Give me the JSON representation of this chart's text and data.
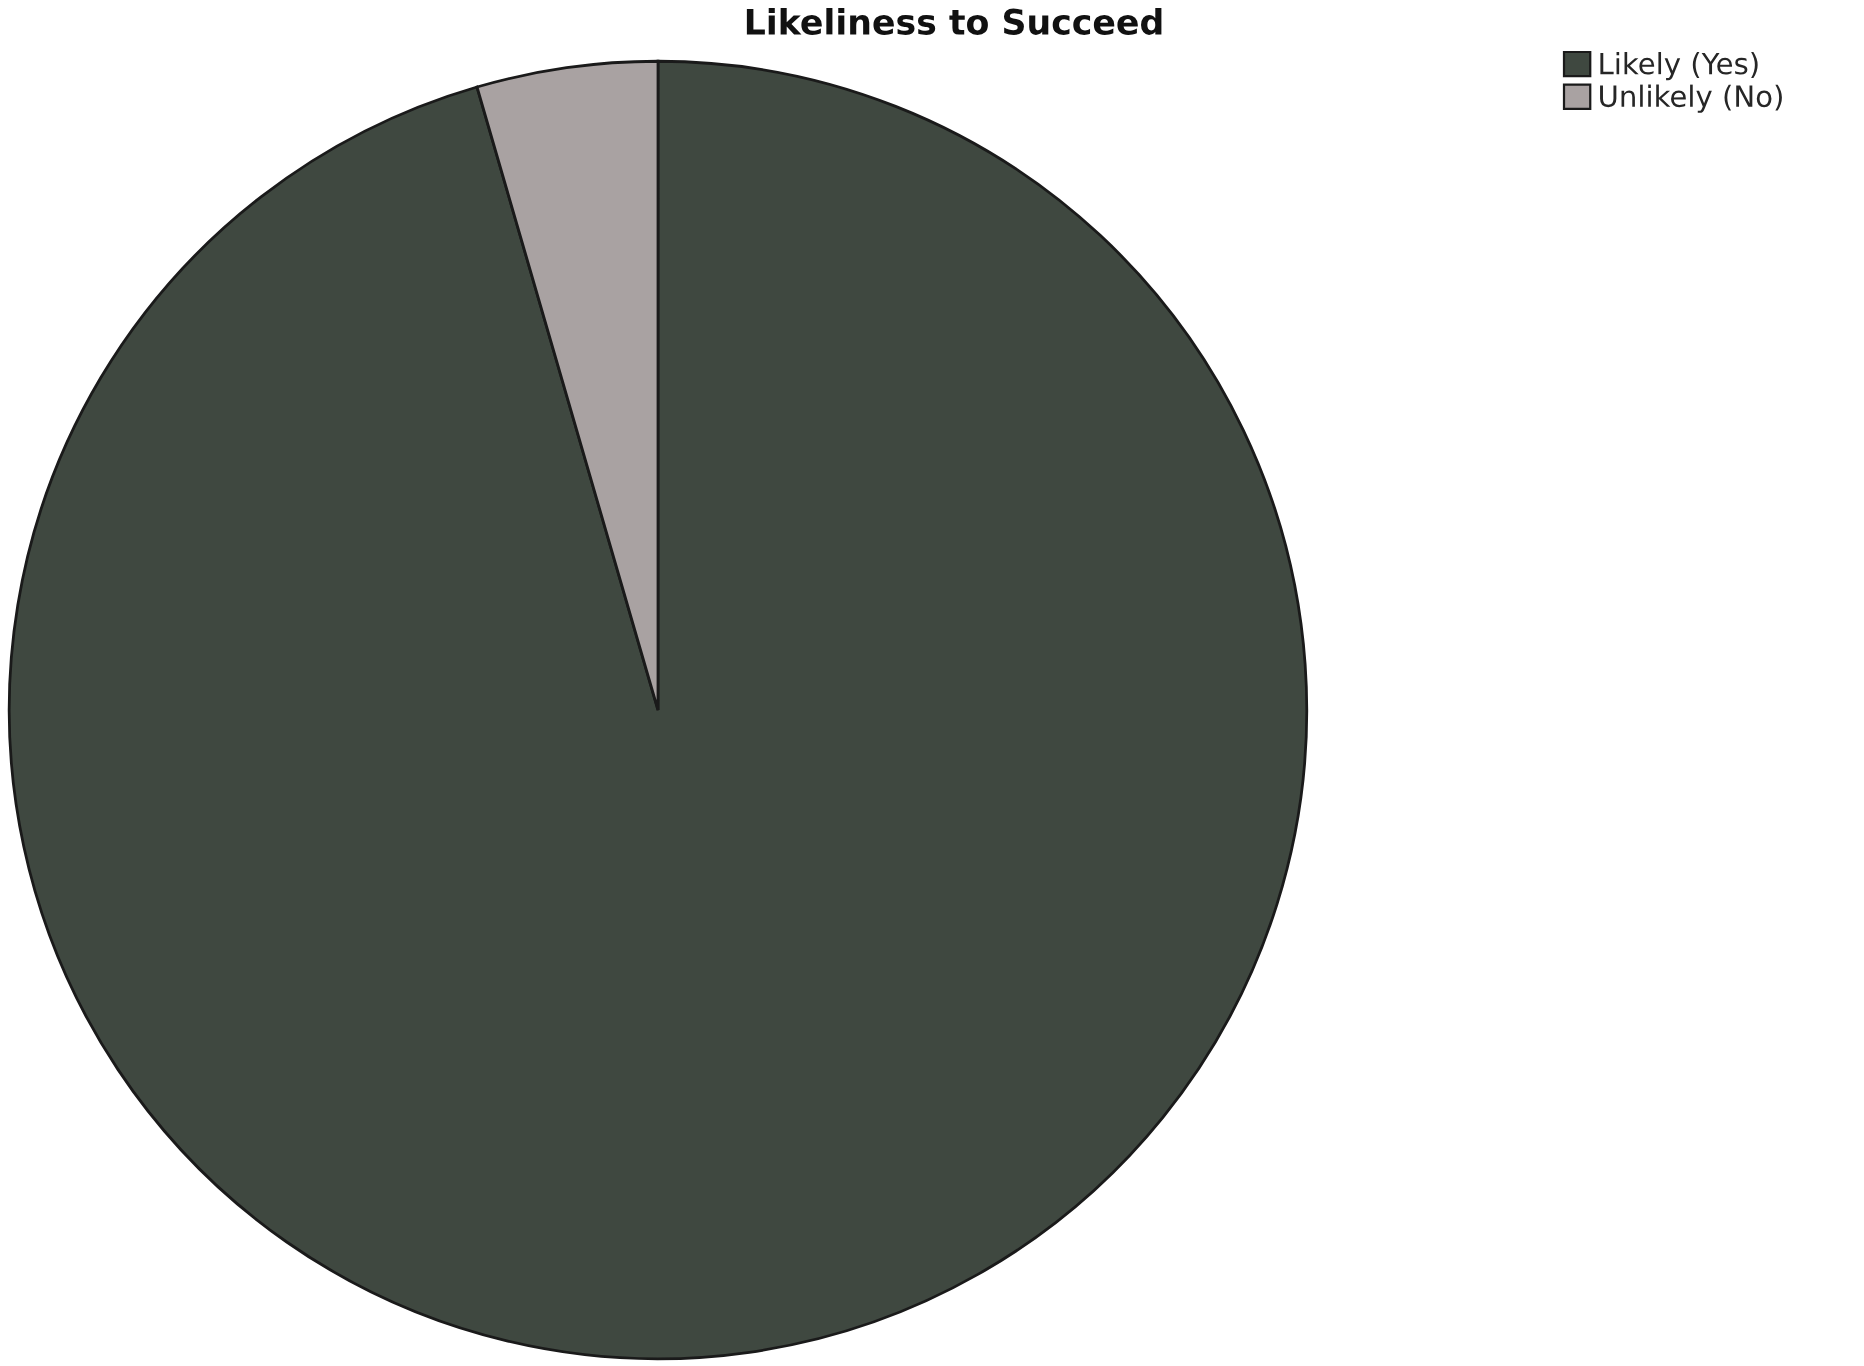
{
  "chart_data": {
    "type": "pie",
    "title": "Likeliness to Succeed",
    "categories": [
      "Likely (Yes)",
      "Unlikely (No)"
    ],
    "values": [
      95.5,
      4.5
    ],
    "colors": [
      "#3f4840",
      "#a9a2a2"
    ],
    "legend": "top right"
  }
}
